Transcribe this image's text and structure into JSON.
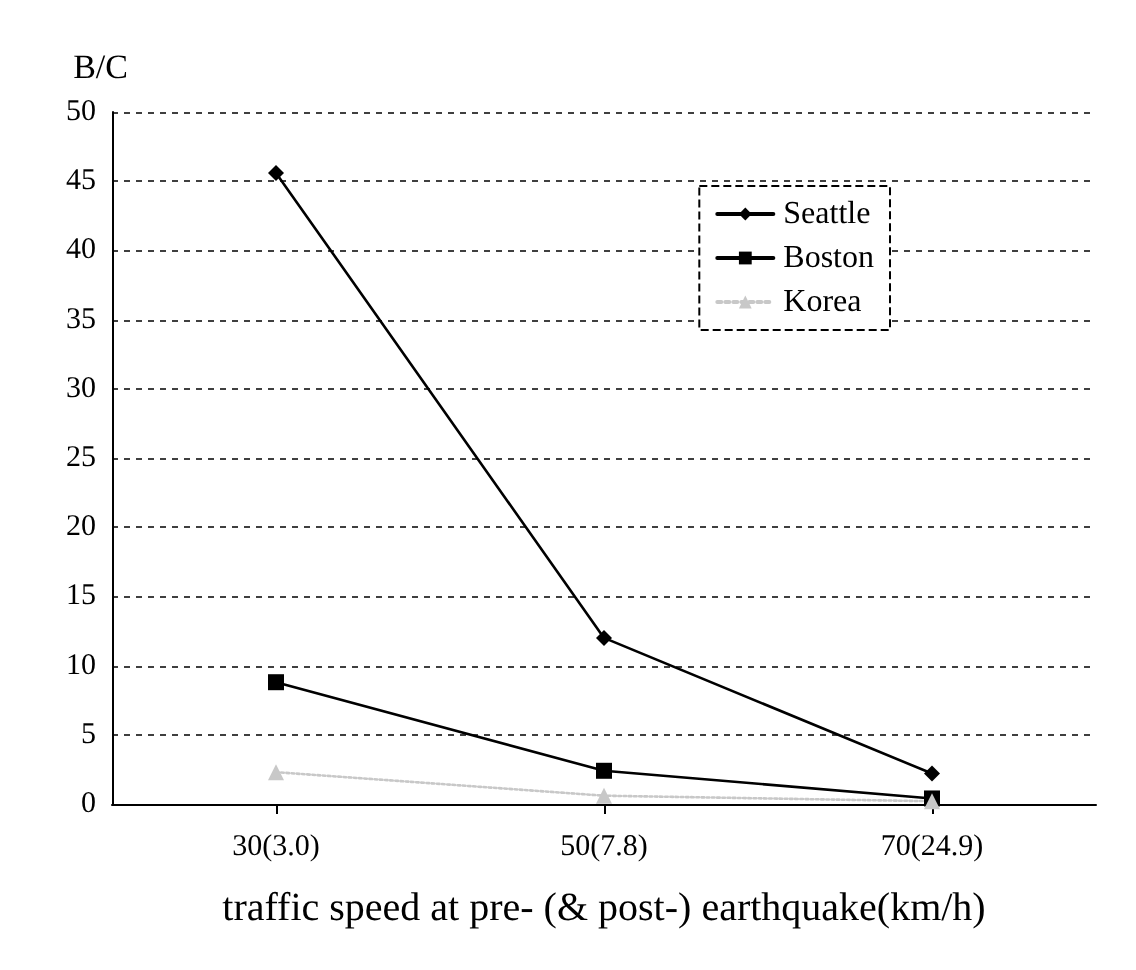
{
  "chart_data": {
    "type": "line",
    "ylabel": "B/C",
    "xlabel": "traffic speed at pre- (& post-) earthquake(km/h)",
    "categories": [
      "30(3.0)",
      "50(7.8)",
      "70(24.9)"
    ],
    "series": [
      {
        "name": "Seattle",
        "color": "#000000",
        "marker": "diamond",
        "values": [
          45.6,
          12,
          2.2
        ]
      },
      {
        "name": "Boston",
        "color": "#000000",
        "marker": "square",
        "values": [
          8.8,
          2.4,
          0.4
        ]
      },
      {
        "name": "Korea",
        "color": "#c8c8c8",
        "marker": "triangle",
        "line_style": "dotted",
        "values": [
          2.3,
          0.6,
          0.2
        ]
      }
    ],
    "ylim": [
      0,
      50
    ],
    "yticks": [
      0,
      5,
      10,
      15,
      20,
      25,
      30,
      35,
      40,
      45,
      50
    ],
    "grid": "y",
    "legend": "top right"
  }
}
